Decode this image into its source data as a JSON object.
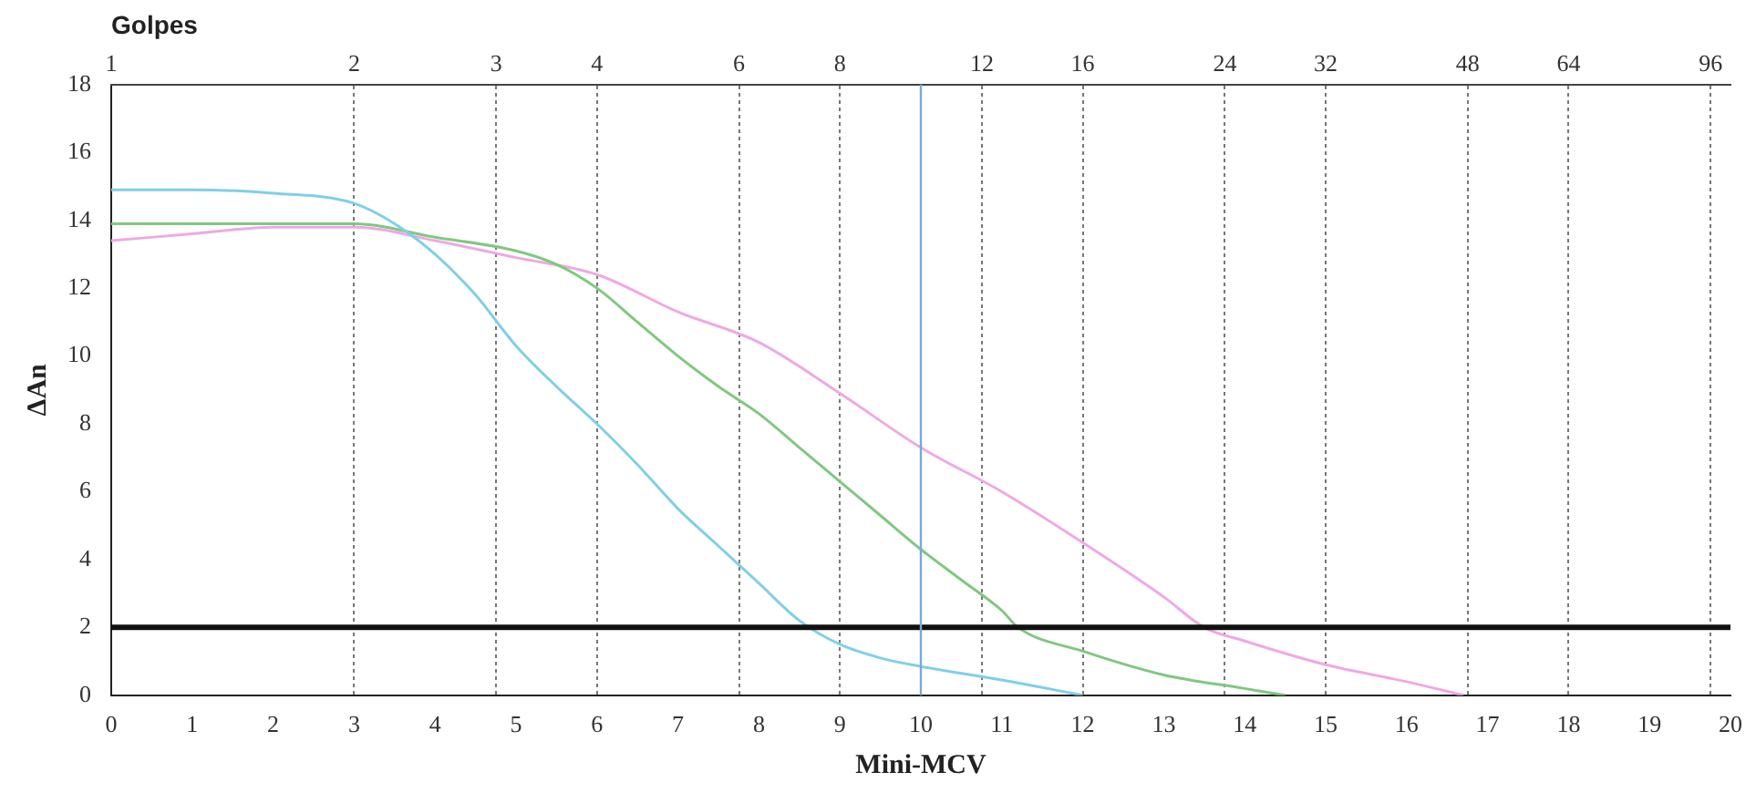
{
  "chart_data": {
    "type": "line",
    "xlabel": "Mini-MCV",
    "ylabel": "ΔAn",
    "x2label": "Golpes",
    "xlim": [
      0,
      20
    ],
    "xticks": [
      0,
      1,
      2,
      3,
      4,
      5,
      6,
      7,
      8,
      9,
      10,
      11,
      12,
      13,
      14,
      15,
      16,
      17,
      18,
      19,
      20
    ],
    "ylim": [
      0,
      18
    ],
    "yticks": [
      0,
      2,
      4,
      6,
      8,
      10,
      12,
      14,
      16,
      18
    ],
    "x2lim": [
      1,
      101.6
    ],
    "x2ticks": [
      1,
      2,
      3,
      4,
      6,
      8,
      12,
      16,
      24,
      32,
      48,
      64,
      96
    ],
    "log": "x2",
    "grid": "x",
    "legend": false,
    "marker": "none",
    "line_style": "solid",
    "ref_lines": [
      {
        "axis": "y",
        "value": 2,
        "color": "#111111"
      },
      {
        "axis": "x",
        "value": 10,
        "color": "#7aa8d8"
      }
    ],
    "series": [
      {
        "color": "#7fd0e8",
        "x": [
          0,
          1,
          2,
          3,
          3.5,
          4,
          4.5,
          5,
          5.5,
          6,
          6.5,
          7,
          7.5,
          8,
          8.5,
          9,
          9.5,
          10,
          11,
          12
        ],
        "values": [
          14.9,
          14.9,
          14.8,
          14.5,
          13.9,
          13.0,
          11.8,
          10.3,
          9.1,
          8.0,
          6.8,
          5.5,
          4.4,
          3.3,
          2.2,
          1.5,
          1.1,
          0.85,
          0.45,
          0
        ]
      },
      {
        "color": "#80c880",
        "x": [
          0,
          2,
          3,
          4,
          5,
          5.5,
          6,
          6.5,
          7,
          7.5,
          8,
          8.5,
          9,
          9.5,
          10,
          10.5,
          11,
          11.2,
          12,
          13,
          14,
          14.5
        ],
        "values": [
          13.9,
          13.9,
          13.9,
          13.5,
          13.1,
          12.7,
          12.0,
          11.0,
          10.0,
          9.1,
          8.3,
          7.3,
          6.3,
          5.3,
          4.3,
          3.4,
          2.5,
          2.0,
          1.3,
          0.6,
          0.2,
          0
        ]
      },
      {
        "color": "#f0a8e4",
        "x": [
          0,
          1,
          2,
          3,
          4,
          5,
          6,
          7,
          8,
          9,
          10,
          11,
          12,
          13,
          13.5,
          14,
          15,
          16,
          16.7
        ],
        "values": [
          13.4,
          13.6,
          13.8,
          13.8,
          13.4,
          12.9,
          12.4,
          11.3,
          10.4,
          8.9,
          7.3,
          6.0,
          4.5,
          2.9,
          2.0,
          1.6,
          0.9,
          0.4,
          0
        ]
      }
    ]
  }
}
